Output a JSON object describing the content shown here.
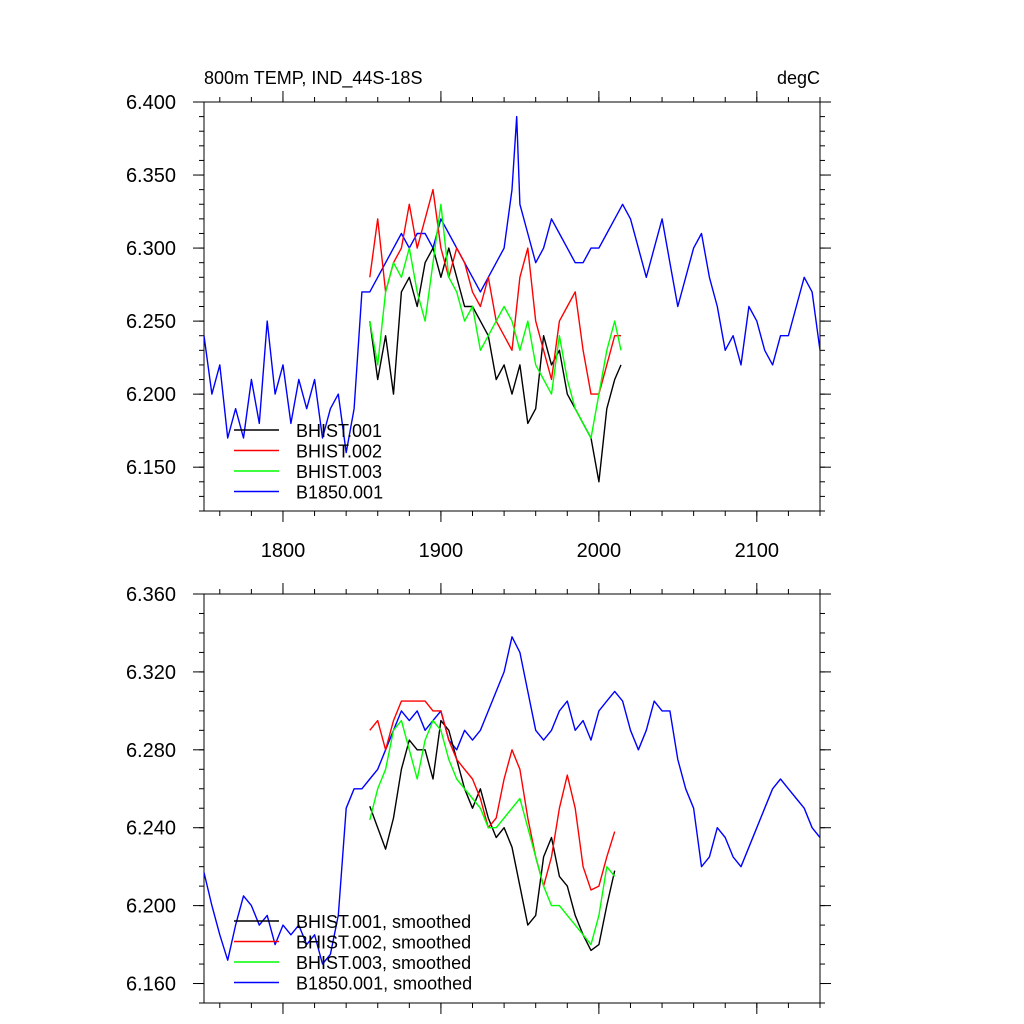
{
  "figure": {
    "title": "800m TEMP, IND_44S-18S",
    "units": "degC"
  },
  "chart_data": [
    {
      "type": "line",
      "title": "800m TEMP, IND_44S-18S",
      "units": "degC",
      "xlim": [
        1750,
        2140
      ],
      "ylim": [
        6.12,
        6.4
      ],
      "x_ticks": [
        1800,
        1900,
        2000,
        2100
      ],
      "x_tick_labels": [
        "1800",
        "1900",
        "2000",
        "2100"
      ],
      "y_ticks": [
        6.15,
        6.2,
        6.25,
        6.3,
        6.35,
        6.4
      ],
      "y_tick_labels": [
        "6.150",
        "6.200",
        "6.250",
        "6.300",
        "6.350",
        "6.400"
      ],
      "grid": false,
      "legend_position": "bottom-left",
      "series": [
        {
          "name": "BHIST.001",
          "color": "#000000",
          "x": [
            1855,
            1860,
            1865,
            1870,
            1875,
            1880,
            1885,
            1890,
            1895,
            1900,
            1905,
            1910,
            1915,
            1920,
            1925,
            1930,
            1935,
            1940,
            1945,
            1950,
            1955,
            1960,
            1965,
            1970,
            1975,
            1980,
            1985,
            1990,
            1995,
            2000,
            2005,
            2010,
            2014
          ],
          "y": [
            6.25,
            6.21,
            6.24,
            6.2,
            6.27,
            6.28,
            6.26,
            6.29,
            6.3,
            6.28,
            6.3,
            6.28,
            6.26,
            6.26,
            6.25,
            6.24,
            6.21,
            6.22,
            6.2,
            6.22,
            6.18,
            6.19,
            6.24,
            6.22,
            6.23,
            6.2,
            6.19,
            6.18,
            6.17,
            6.14,
            6.19,
            6.21,
            6.22
          ]
        },
        {
          "name": "BHIST.002",
          "color": "#ff0000",
          "x": [
            1855,
            1860,
            1865,
            1870,
            1875,
            1880,
            1885,
            1890,
            1895,
            1900,
            1905,
            1910,
            1915,
            1920,
            1925,
            1930,
            1935,
            1940,
            1945,
            1950,
            1955,
            1960,
            1965,
            1970,
            1975,
            1980,
            1985,
            1990,
            1995,
            2000,
            2005,
            2010,
            2014
          ],
          "y": [
            6.28,
            6.32,
            6.27,
            6.29,
            6.3,
            6.33,
            6.3,
            6.32,
            6.34,
            6.3,
            6.28,
            6.3,
            6.29,
            6.27,
            6.26,
            6.28,
            6.25,
            6.24,
            6.23,
            6.28,
            6.3,
            6.25,
            6.23,
            6.21,
            6.25,
            6.26,
            6.27,
            6.23,
            6.2,
            6.2,
            6.22,
            6.24,
            6.24
          ]
        },
        {
          "name": "BHIST.003",
          "color": "#00ff00",
          "x": [
            1855,
            1860,
            1865,
            1870,
            1875,
            1880,
            1885,
            1890,
            1895,
            1900,
            1905,
            1910,
            1915,
            1920,
            1925,
            1930,
            1935,
            1940,
            1945,
            1950,
            1955,
            1960,
            1965,
            1970,
            1975,
            1980,
            1985,
            1990,
            1995,
            2000,
            2005,
            2010,
            2014
          ],
          "y": [
            6.25,
            6.22,
            6.27,
            6.29,
            6.28,
            6.3,
            6.27,
            6.25,
            6.29,
            6.33,
            6.28,
            6.27,
            6.25,
            6.26,
            6.23,
            6.24,
            6.25,
            6.26,
            6.25,
            6.23,
            6.25,
            6.22,
            6.21,
            6.2,
            6.24,
            6.21,
            6.19,
            6.18,
            6.17,
            6.2,
            6.23,
            6.25,
            6.23
          ]
        },
        {
          "name": "B1850.001",
          "color": "#0000ff",
          "x": [
            1750,
            1755,
            1760,
            1765,
            1770,
            1775,
            1780,
            1785,
            1790,
            1795,
            1800,
            1805,
            1810,
            1815,
            1820,
            1825,
            1830,
            1835,
            1840,
            1845,
            1850,
            1855,
            1860,
            1865,
            1870,
            1875,
            1880,
            1885,
            1890,
            1895,
            1900,
            1905,
            1910,
            1915,
            1920,
            1925,
            1930,
            1935,
            1940,
            1945,
            1948,
            1950,
            1955,
            1960,
            1965,
            1970,
            1975,
            1980,
            1985,
            1990,
            1995,
            2000,
            2005,
            2010,
            2015,
            2020,
            2025,
            2030,
            2035,
            2040,
            2045,
            2050,
            2055,
            2060,
            2065,
            2070,
            2075,
            2080,
            2085,
            2090,
            2095,
            2100,
            2105,
            2110,
            2115,
            2120,
            2125,
            2130,
            2135,
            2140
          ],
          "y": [
            6.24,
            6.2,
            6.22,
            6.17,
            6.19,
            6.17,
            6.21,
            6.18,
            6.25,
            6.2,
            6.22,
            6.18,
            6.21,
            6.19,
            6.21,
            6.17,
            6.19,
            6.2,
            6.16,
            6.19,
            6.27,
            6.27,
            6.28,
            6.29,
            6.3,
            6.31,
            6.3,
            6.31,
            6.31,
            6.3,
            6.32,
            6.31,
            6.3,
            6.29,
            6.28,
            6.27,
            6.28,
            6.29,
            6.3,
            6.34,
            6.39,
            6.33,
            6.31,
            6.29,
            6.3,
            6.32,
            6.31,
            6.3,
            6.29,
            6.29,
            6.3,
            6.3,
            6.31,
            6.32,
            6.33,
            6.32,
            6.3,
            6.28,
            6.3,
            6.32,
            6.29,
            6.26,
            6.28,
            6.3,
            6.31,
            6.28,
            6.26,
            6.23,
            6.24,
            6.22,
            6.26,
            6.25,
            6.23,
            6.22,
            6.24,
            6.24,
            6.26,
            6.28,
            6.27,
            6.23
          ]
        }
      ]
    },
    {
      "type": "line",
      "xlim": [
        1750,
        2140
      ],
      "ylim": [
        6.15,
        6.36
      ],
      "x_ticks": [
        1800,
        1900,
        2000,
        2100
      ],
      "y_ticks": [
        6.16,
        6.2,
        6.24,
        6.28,
        6.32,
        6.36
      ],
      "y_tick_labels": [
        "6.160",
        "6.200",
        "6.240",
        "6.280",
        "6.320",
        "6.360"
      ],
      "grid": false,
      "legend_position": "bottom-left",
      "series": [
        {
          "name": "BHIST.001, smoothed",
          "color": "#000000",
          "x": [
            1855,
            1860,
            1865,
            1870,
            1875,
            1880,
            1885,
            1890,
            1895,
            1900,
            1905,
            1910,
            1915,
            1920,
            1925,
            1930,
            1935,
            1940,
            1945,
            1950,
            1955,
            1960,
            1965,
            1970,
            1975,
            1980,
            1985,
            1990,
            1995,
            2000,
            2005,
            2010
          ],
          "y": [
            6.251,
            6.24,
            6.229,
            6.245,
            6.27,
            6.285,
            6.28,
            6.28,
            6.265,
            6.295,
            6.29,
            6.275,
            6.26,
            6.25,
            6.26,
            6.245,
            6.235,
            6.24,
            6.23,
            6.21,
            6.19,
            6.195,
            6.225,
            6.235,
            6.215,
            6.21,
            6.195,
            6.185,
            6.177,
            6.18,
            6.2,
            6.218
          ]
        },
        {
          "name": "BHIST.002, smoothed",
          "color": "#ff0000",
          "x": [
            1855,
            1860,
            1865,
            1870,
            1875,
            1880,
            1885,
            1890,
            1895,
            1900,
            1905,
            1910,
            1915,
            1920,
            1925,
            1930,
            1935,
            1940,
            1945,
            1950,
            1955,
            1960,
            1965,
            1970,
            1975,
            1980,
            1985,
            1990,
            1995,
            2000,
            2005,
            2010
          ],
          "y": [
            6.29,
            6.295,
            6.28,
            6.295,
            6.305,
            6.305,
            6.305,
            6.305,
            6.3,
            6.3,
            6.285,
            6.275,
            6.27,
            6.265,
            6.255,
            6.24,
            6.245,
            6.265,
            6.28,
            6.27,
            6.245,
            6.225,
            6.21,
            6.225,
            6.25,
            6.267,
            6.25,
            6.22,
            6.208,
            6.21,
            6.225,
            6.238
          ]
        },
        {
          "name": "BHIST.003, smoothed",
          "color": "#00ff00",
          "x": [
            1855,
            1860,
            1865,
            1870,
            1875,
            1880,
            1885,
            1890,
            1895,
            1900,
            1905,
            1910,
            1915,
            1920,
            1925,
            1930,
            1935,
            1940,
            1945,
            1950,
            1955,
            1960,
            1965,
            1970,
            1975,
            1980,
            1985,
            1990,
            1995,
            2000,
            2005,
            2010
          ],
          "y": [
            6.244,
            6.26,
            6.27,
            6.29,
            6.295,
            6.28,
            6.265,
            6.285,
            6.295,
            6.29,
            6.275,
            6.265,
            6.26,
            6.255,
            6.25,
            6.24,
            6.24,
            6.245,
            6.25,
            6.255,
            6.24,
            6.225,
            6.21,
            6.2,
            6.2,
            6.195,
            6.19,
            6.185,
            6.18,
            6.195,
            6.22,
            6.215
          ]
        },
        {
          "name": "B1850.001, smoothed",
          "color": "#0000ff",
          "x": [
            1750,
            1755,
            1760,
            1765,
            1770,
            1775,
            1780,
            1785,
            1790,
            1795,
            1800,
            1805,
            1810,
            1815,
            1820,
            1825,
            1830,
            1835,
            1840,
            1845,
            1850,
            1855,
            1860,
            1865,
            1870,
            1875,
            1880,
            1885,
            1890,
            1895,
            1900,
            1905,
            1910,
            1915,
            1920,
            1925,
            1930,
            1935,
            1940,
            1945,
            1950,
            1955,
            1960,
            1965,
            1970,
            1975,
            1980,
            1985,
            1990,
            1995,
            2000,
            2005,
            2010,
            2015,
            2020,
            2025,
            2030,
            2035,
            2040,
            2045,
            2050,
            2055,
            2060,
            2065,
            2070,
            2075,
            2080,
            2085,
            2090,
            2095,
            2100,
            2105,
            2110,
            2115,
            2120,
            2125,
            2130,
            2135,
            2140
          ],
          "y": [
            6.217,
            6.2,
            6.185,
            6.172,
            6.19,
            6.205,
            6.2,
            6.19,
            6.195,
            6.18,
            6.19,
            6.185,
            6.19,
            6.18,
            6.185,
            6.17,
            6.175,
            6.195,
            6.25,
            6.26,
            6.26,
            6.265,
            6.27,
            6.28,
            6.29,
            6.3,
            6.295,
            6.3,
            6.29,
            6.295,
            6.3,
            6.285,
            6.28,
            6.29,
            6.285,
            6.29,
            6.3,
            6.31,
            6.32,
            6.338,
            6.33,
            6.31,
            6.29,
            6.285,
            6.29,
            6.3,
            6.305,
            6.29,
            6.295,
            6.285,
            6.3,
            6.305,
            6.31,
            6.305,
            6.29,
            6.28,
            6.29,
            6.305,
            6.3,
            6.3,
            6.275,
            6.26,
            6.25,
            6.22,
            6.225,
            6.24,
            6.235,
            6.225,
            6.22,
            6.23,
            6.24,
            6.25,
            6.26,
            6.265,
            6.26,
            6.255,
            6.25,
            6.24,
            6.235
          ]
        }
      ]
    }
  ]
}
